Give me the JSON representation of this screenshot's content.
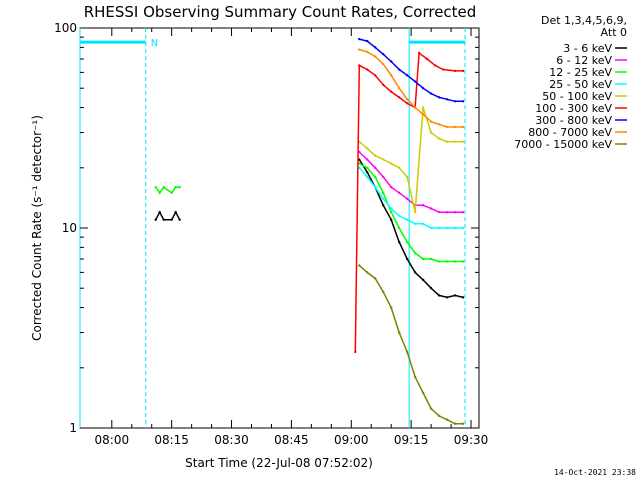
{
  "chart_data": {
    "type": "line",
    "title": "RHESSI Observing Summary Count Rates, Corrected",
    "xlabel": "Start Time (22-Jul-08 07:52:02)",
    "ylabel": "Corrected Count Rate (s⁻¹ detector⁻¹)",
    "y_scale": "log",
    "ylim": [
      1,
      100
    ],
    "xlim": [
      "07:52:02",
      "09:32"
    ],
    "x_ticks": [
      "08:00",
      "08:15",
      "08:30",
      "08:45",
      "09:00",
      "09:15",
      "09:30"
    ],
    "y_ticks": [
      "1",
      "10",
      "100"
    ],
    "legend_title_lines": [
      "Det 1,3,4,5,6,9,",
      "Att 0"
    ],
    "legend_placement": "right",
    "series": [
      {
        "name": "3 - 6 keV",
        "color": "#000000",
        "points": [
          [
            "08:11",
            11
          ],
          [
            "08:12",
            12
          ],
          [
            "08:13",
            11
          ],
          [
            "08:15",
            11
          ],
          [
            "08:16",
            12
          ],
          [
            "08:17",
            11
          ],
          [
            "09:02",
            22
          ],
          [
            "09:04",
            19
          ],
          [
            "09:06",
            16
          ],
          [
            "09:08",
            13
          ],
          [
            "09:10",
            11
          ],
          [
            "09:12",
            8.5
          ],
          [
            "09:14",
            7
          ],
          [
            "09:16",
            6
          ],
          [
            "09:18",
            5.5
          ],
          [
            "09:20",
            5
          ],
          [
            "09:22",
            4.6
          ],
          [
            "09:24",
            4.5
          ],
          [
            "09:26",
            4.6
          ],
          [
            "09:28",
            4.5
          ]
        ]
      },
      {
        "name": "6 - 12 keV",
        "color": "#ff00ff",
        "points": [
          [
            "09:02",
            24
          ],
          [
            "09:04",
            22
          ],
          [
            "09:06",
            20
          ],
          [
            "09:08",
            18
          ],
          [
            "09:10",
            16
          ],
          [
            "09:12",
            15
          ],
          [
            "09:14",
            14
          ],
          [
            "09:16",
            13
          ],
          [
            "09:18",
            13
          ],
          [
            "09:20",
            12.5
          ],
          [
            "09:22",
            12
          ],
          [
            "09:24",
            12
          ],
          [
            "09:26",
            12
          ],
          [
            "09:28",
            12
          ]
        ]
      },
      {
        "name": "12 - 25 keV",
        "color": "#00ff00",
        "points": [
          [
            "08:11",
            16
          ],
          [
            "08:12",
            15
          ],
          [
            "08:13",
            16
          ],
          [
            "08:15",
            15
          ],
          [
            "08:16",
            16
          ],
          [
            "08:17",
            16
          ],
          [
            "09:02",
            21
          ],
          [
            "09:04",
            20
          ],
          [
            "09:06",
            18
          ],
          [
            "09:08",
            15
          ],
          [
            "09:10",
            12
          ],
          [
            "09:12",
            10
          ],
          [
            "09:14",
            8.5
          ],
          [
            "09:16",
            7.5
          ],
          [
            "09:18",
            7
          ],
          [
            "09:20",
            7
          ],
          [
            "09:22",
            6.8
          ],
          [
            "09:24",
            6.8
          ],
          [
            "09:26",
            6.8
          ],
          [
            "09:28",
            6.8
          ]
        ]
      },
      {
        "name": "25 - 50 keV",
        "color": "#00ffff",
        "points": [
          [
            "09:02",
            20
          ],
          [
            "09:04",
            18
          ],
          [
            "09:06",
            16
          ],
          [
            "09:08",
            14
          ],
          [
            "09:10",
            12.5
          ],
          [
            "09:12",
            11.5
          ],
          [
            "09:14",
            11
          ],
          [
            "09:16",
            10.5
          ],
          [
            "09:18",
            10.5
          ],
          [
            "09:20",
            10
          ],
          [
            "09:22",
            10
          ],
          [
            "09:24",
            10
          ],
          [
            "09:26",
            10
          ],
          [
            "09:28",
            10
          ]
        ]
      },
      {
        "name": "50 - 100 keV",
        "color": "#cccc00",
        "points": [
          [
            "09:02",
            27
          ],
          [
            "09:04",
            25
          ],
          [
            "09:06",
            23
          ],
          [
            "09:08",
            22
          ],
          [
            "09:10",
            21
          ],
          [
            "09:12",
            20
          ],
          [
            "09:14",
            18
          ],
          [
            "09:16",
            12
          ],
          [
            "09:18",
            40
          ],
          [
            "09:20",
            30
          ],
          [
            "09:22",
            28
          ],
          [
            "09:24",
            27
          ],
          [
            "09:26",
            27
          ],
          [
            "09:28",
            27
          ]
        ]
      },
      {
        "name": "100 - 300 keV",
        "color": "#ff0000",
        "points": [
          [
            "09:01",
            2.4
          ],
          [
            "09:02",
            65
          ],
          [
            "09:04",
            62
          ],
          [
            "09:06",
            58
          ],
          [
            "09:08",
            52
          ],
          [
            "09:10",
            48
          ],
          [
            "09:12",
            45
          ],
          [
            "09:14",
            42
          ],
          [
            "09:16",
            40
          ],
          [
            "09:17",
            75
          ],
          [
            "09:19",
            70
          ],
          [
            "09:21",
            65
          ],
          [
            "09:23",
            62
          ],
          [
            "09:26",
            61
          ],
          [
            "09:28",
            61
          ]
        ]
      },
      {
        "name": "300 - 800 keV",
        "color": "#0000ff",
        "points": [
          [
            "09:02",
            88
          ],
          [
            "09:04",
            86
          ],
          [
            "09:06",
            80
          ],
          [
            "09:08",
            74
          ],
          [
            "09:10",
            68
          ],
          [
            "09:12",
            62
          ],
          [
            "09:14",
            58
          ],
          [
            "09:16",
            54
          ],
          [
            "09:18",
            50
          ],
          [
            "09:20",
            47
          ],
          [
            "09:22",
            45
          ],
          [
            "09:24",
            44
          ],
          [
            "09:26",
            43
          ],
          [
            "09:28",
            43
          ]
        ]
      },
      {
        "name": "800 - 7000 keV",
        "color": "#ff8800",
        "points": [
          [
            "09:02",
            78
          ],
          [
            "09:04",
            76
          ],
          [
            "09:06",
            72
          ],
          [
            "09:08",
            66
          ],
          [
            "09:10",
            58
          ],
          [
            "09:12",
            50
          ],
          [
            "09:14",
            44
          ],
          [
            "09:16",
            40
          ],
          [
            "09:18",
            37
          ],
          [
            "09:20",
            34
          ],
          [
            "09:22",
            33
          ],
          [
            "09:24",
            32
          ],
          [
            "09:26",
            32
          ],
          [
            "09:28",
            32
          ]
        ]
      },
      {
        "name": "7000 - 15000 keV",
        "color": "#808000",
        "points": [
          [
            "09:02",
            6.5
          ],
          [
            "09:04",
            6
          ],
          [
            "09:06",
            5.6
          ],
          [
            "09:08",
            4.8
          ],
          [
            "09:10",
            4
          ],
          [
            "09:12",
            3
          ],
          [
            "09:14",
            2.4
          ],
          [
            "09:16",
            1.8
          ],
          [
            "09:18",
            1.5
          ],
          [
            "09:20",
            1.25
          ],
          [
            "09:22",
            1.15
          ],
          [
            "09:24",
            1.1
          ],
          [
            "09:26",
            1.05
          ],
          [
            "09:28",
            1.05
          ]
        ]
      }
    ],
    "annotations": {
      "night_flag_label": "N",
      "bars_y": 85,
      "bars": [
        [
          "07:52:02",
          "08:08:30"
        ],
        [
          "09:14:30",
          "09:28:30"
        ]
      ],
      "dashed_lines": [
        "08:08:30",
        "09:28:30"
      ],
      "solid_lines": [
        "07:52:02",
        "09:14:30"
      ]
    }
  },
  "footer": {
    "timestamp": "14-Oct-2021 23:38"
  }
}
